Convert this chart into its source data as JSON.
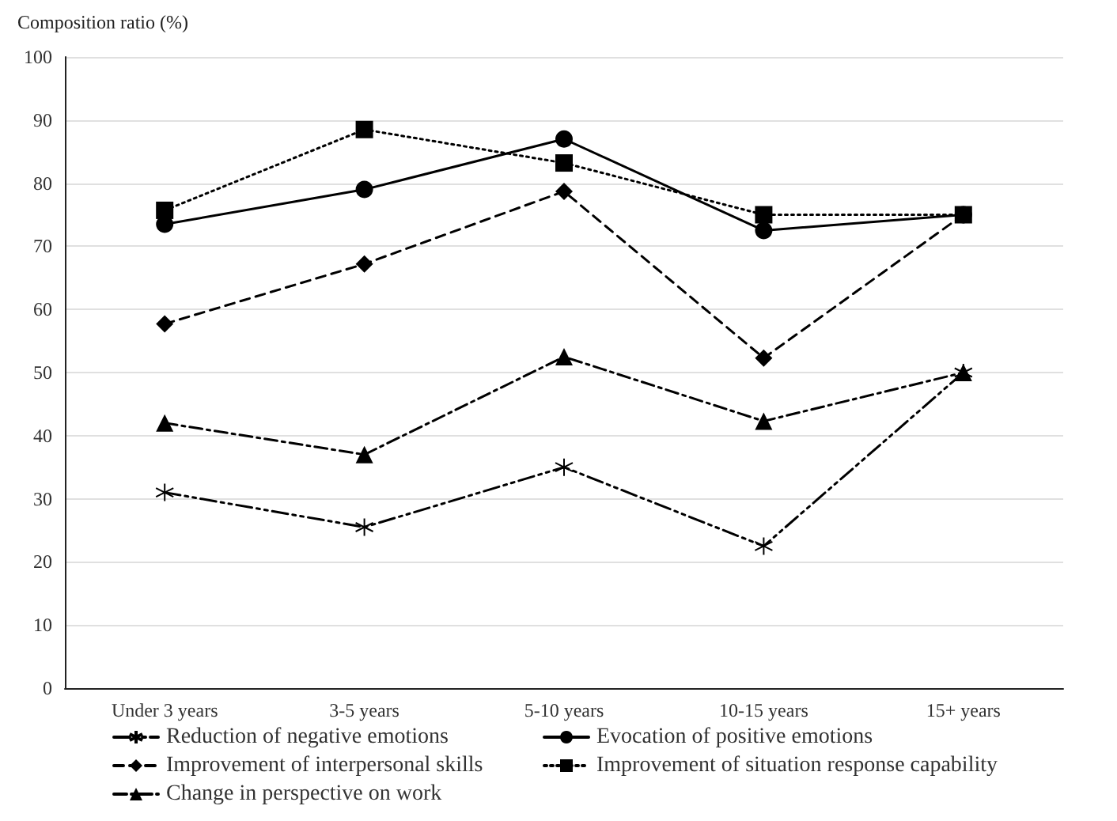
{
  "chart_data": {
    "type": "line",
    "ylabel": "Composition ratio (%)",
    "categories": [
      "Under 3 years",
      "3-5 years",
      "5-10 years",
      "10-15 years",
      "15+ years"
    ],
    "ylim": [
      0,
      100
    ],
    "yticks": [
      0,
      10,
      20,
      30,
      40,
      50,
      60,
      70,
      80,
      90,
      100
    ],
    "grid": "y",
    "legend": "bottom",
    "series": [
      {
        "name": "Reduction of negative emotions",
        "color": "#000000",
        "marker": "cross",
        "line_style": "dashdotdot",
        "values": [
          31,
          25.5,
          35,
          22.5,
          50
        ]
      },
      {
        "name": "Evocation of positive emotions",
        "color": "#000000",
        "marker": "circle",
        "line_style": "solid",
        "values": [
          73.5,
          79,
          87,
          72.5,
          75
        ]
      },
      {
        "name": "Improvement of interpersonal skills",
        "color": "#000000",
        "marker": "diamond",
        "line_style": "dashed",
        "values": [
          57.7,
          67.2,
          78.7,
          52.3,
          75
        ]
      },
      {
        "name": "Improvement of situation response capability",
        "color": "#000000",
        "marker": "square",
        "line_style": "dotted",
        "values": [
          75.7,
          88.5,
          83.2,
          75,
          75
        ]
      },
      {
        "name": "Change in perspective on work",
        "color": "#000000",
        "marker": "triangle",
        "line_style": "dashdot",
        "values": [
          42,
          37,
          52.5,
          42.3,
          50
        ]
      }
    ]
  }
}
